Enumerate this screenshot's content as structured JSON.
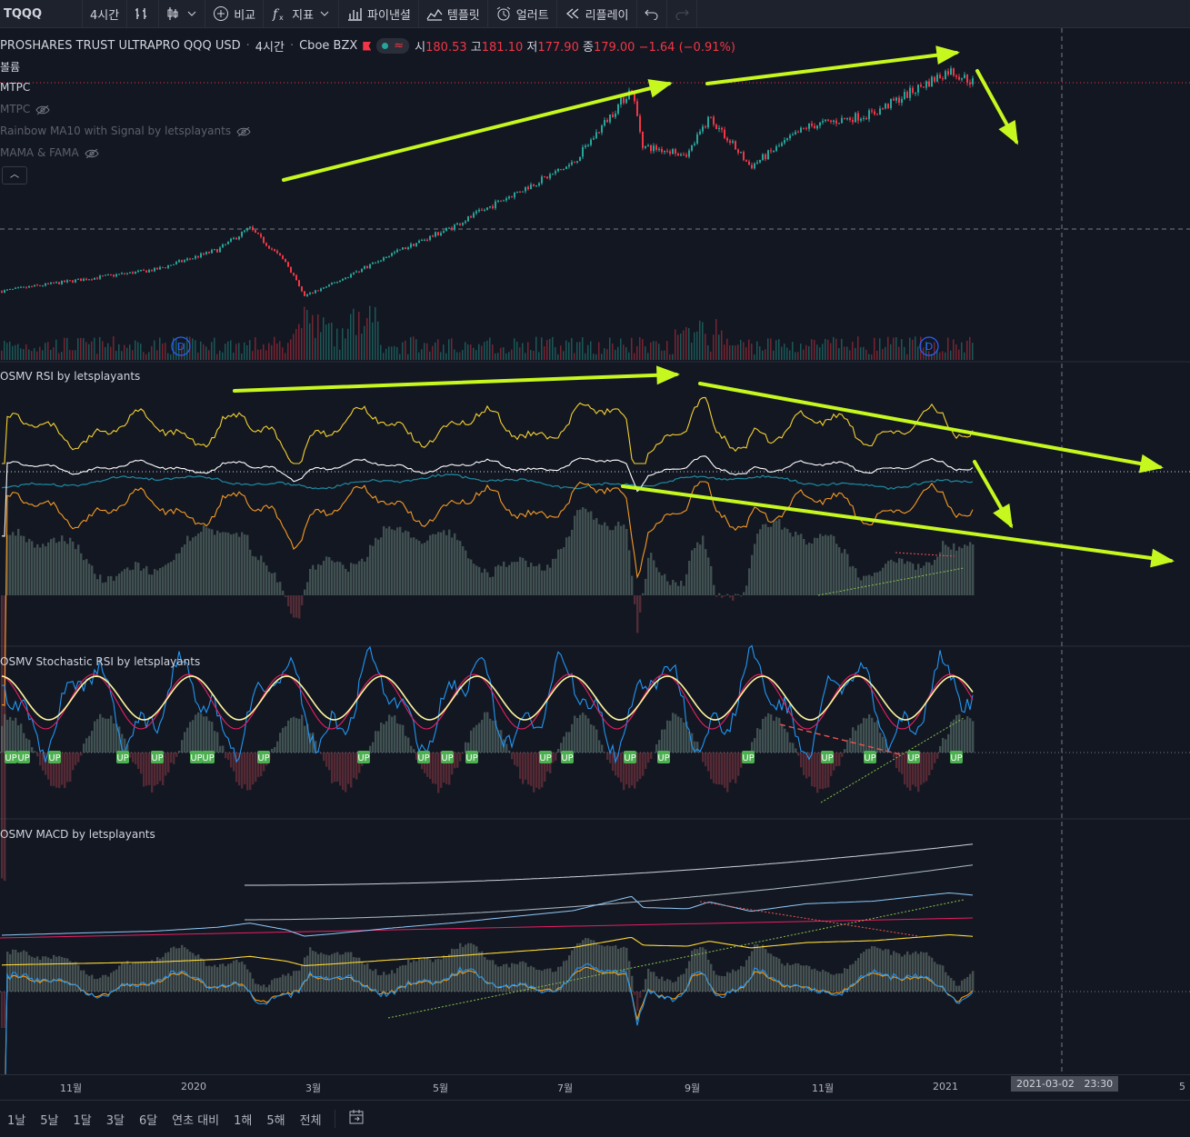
{
  "toolbar": {
    "symbol": "TQQQ",
    "interval": "4시간",
    "compare_label": "비교",
    "indicators_label": "지표",
    "financials_label": "파이낸셜",
    "templates_label": "템플릿",
    "alert_label": "얼러트",
    "replay_label": "리플레이"
  },
  "header": {
    "instrument": "PROSHARES TRUST ULTRAPRO QQQ USD",
    "interval": "4시간",
    "exchange": "Cboe BZX",
    "open_label": "시",
    "open": "180.53",
    "high_label": "고",
    "high": "181.10",
    "low_label": "저",
    "low": "177.90",
    "close_label": "종",
    "close": "179.00",
    "change": "−1.64 (−0.91%)"
  },
  "indicators": {
    "volume": "볼륨",
    "mtpc": "MTPC",
    "mtpc_hidden": "MTPC",
    "rainbow": "Rainbow MA10 with Signal by letsplayants",
    "mama": "MAMA & FAMA"
  },
  "panes": {
    "rsi": "OSMV RSI by letsplayants",
    "stoch": "OSMV Stochastic RSI by letsplayants",
    "macd": "OSMV MACD by letsplayants"
  },
  "xaxis": {
    "labels": [
      "11월",
      "2020",
      "3월",
      "5월",
      "7월",
      "9월",
      "11월",
      "2021",
      "5"
    ],
    "crosshair_date": "2021-03-02",
    "crosshair_time": "23:30"
  },
  "ranges": [
    "1날",
    "5날",
    "1달",
    "3달",
    "6달",
    "연초 대비",
    "1해",
    "5해",
    "전체"
  ],
  "colors": {
    "up": "#26a69a",
    "down": "#f23645",
    "arrow": "#c6f81f",
    "rsi_yellow": "#f5d130",
    "rsi_orange": "#f59a23",
    "rsi_teal": "#1e8aa0",
    "stoch_yellow": "#fff59d",
    "stoch_pink": "#e91e63",
    "stoch_blue": "#2196f3"
  },
  "chart_data": {
    "type": "line",
    "title": "PROSHARES TRUST ULTRAPRO QQQ USD",
    "x": [
      "2019-10-15",
      "2019-11-01",
      "2019-12-01",
      "2020-01-02",
      "2020-02-03",
      "2020-02-19",
      "2020-03-09",
      "2020-03-18",
      "2020-04-01",
      "2020-05-01",
      "2020-06-01",
      "2020-07-01",
      "2020-08-03",
      "2020-09-02",
      "2020-09-08",
      "2020-10-01",
      "2020-10-12",
      "2020-11-02",
      "2020-12-01",
      "2021-01-04",
      "2021-02-12",
      "2021-02-24"
    ],
    "series": [
      {
        "values": [
          53,
          56,
          61,
          66,
          78,
          91,
          70,
          50,
          57,
          75,
          91,
          110,
          130,
          175,
          140,
          136,
          158,
          128,
          152,
          160,
          186,
          179
        ]
      }
    ],
    "ylabel": "",
    "annotation_labels": [
      "D",
      "D",
      "UP"
    ]
  }
}
